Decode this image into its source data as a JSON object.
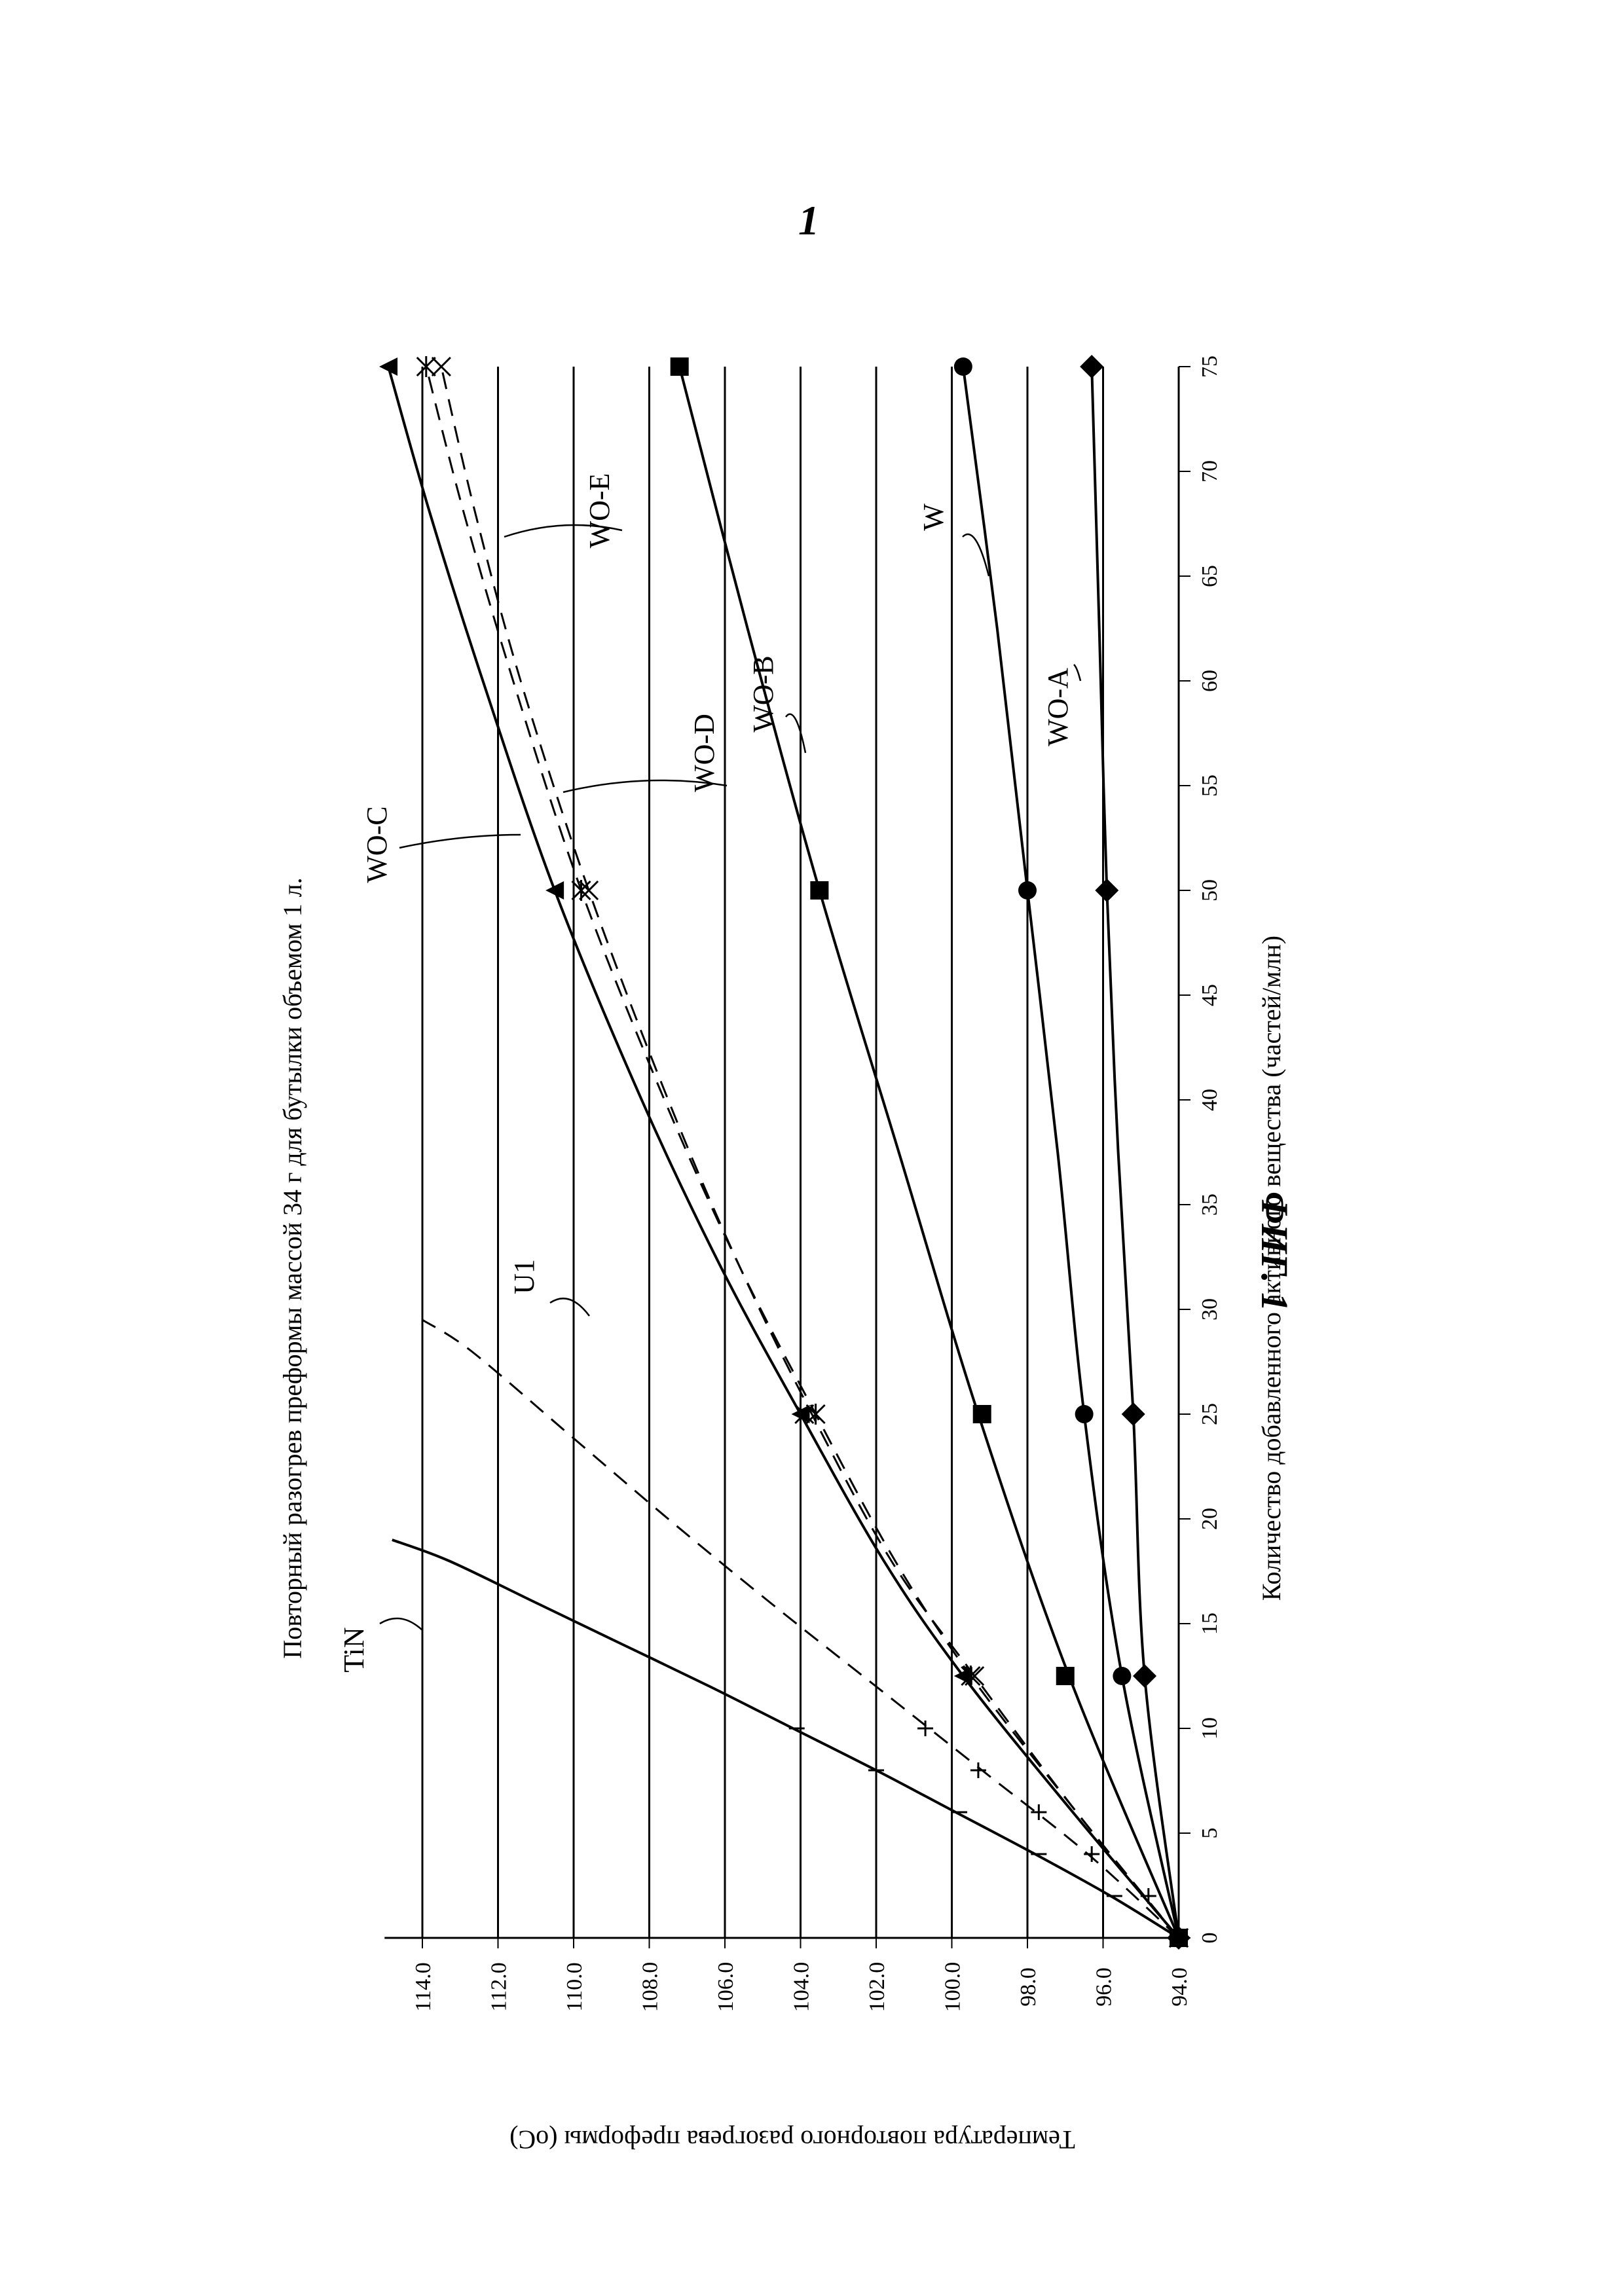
{
  "page": {
    "number": "1",
    "caption": "ФИГ. 1"
  },
  "chart_data": {
    "type": "line",
    "title": "Повторный разогрев преформы массой 34 г для бутылки объемом 1 л.",
    "xlabel": "Количество добавленного активного вещества (частей/млн)",
    "ylabel": "Температура повторного разогрева преформы (oC)",
    "xlim": [
      0,
      75
    ],
    "ylim": [
      94,
      115
    ],
    "x_ticks": [
      "0",
      "5",
      "10",
      "15",
      "20",
      "25",
      "30",
      "35",
      "40",
      "45",
      "50",
      "55",
      "60",
      "65",
      "70",
      "75"
    ],
    "y_ticks": [
      "94.0",
      "96.0",
      "98.0",
      "100.0",
      "102.0",
      "104.0",
      "106.0",
      "108.0",
      "110.0",
      "112.0",
      "114.0"
    ],
    "grid": "horizontal",
    "orientation": "rotated 90° counter-clockwise",
    "series": [
      {
        "name": "TiN",
        "style": "solid",
        "marker": "dash",
        "x": [
          0,
          2,
          4,
          6,
          8,
          10
        ],
        "y": [
          94.0,
          95.7,
          97.7,
          99.8,
          102.0,
          104.1
        ],
        "curve_x": [
          0,
          2,
          4,
          6,
          8,
          10,
          12,
          14,
          16,
          18,
          19
        ],
        "curve_y": [
          94.0,
          95.8,
          97.8,
          99.9,
          102.0,
          104.2,
          106.4,
          108.7,
          111.0,
          113.3,
          114.8
        ]
      },
      {
        "name": "U1",
        "style": "dashed",
        "marker": "plus",
        "x": [
          0,
          2,
          4,
          6,
          8,
          10
        ],
        "y": [
          94.0,
          94.8,
          96.3,
          97.7,
          99.3,
          100.7
        ],
        "curve_x": [
          0,
          4,
          8,
          12,
          16,
          20,
          24,
          28,
          29.5
        ],
        "curve_y": [
          94.0,
          96.4,
          99.2,
          102.0,
          104.8,
          107.5,
          110.1,
          112.7,
          114.0
        ]
      },
      {
        "name": "WO-C",
        "style": "solid",
        "marker": "triangle",
        "x": [
          0,
          12.5,
          25,
          50,
          75
        ],
        "y": [
          94.0,
          99.7,
          104.0,
          110.5,
          114.9
        ],
        "curve_x": [
          0,
          6,
          12.5,
          18,
          25,
          32,
          40,
          50,
          60,
          68,
          75
        ],
        "curve_y": [
          94.0,
          96.8,
          99.7,
          101.8,
          104.0,
          106.1,
          108.2,
          110.5,
          112.4,
          113.8,
          114.9
        ]
      },
      {
        "name": "WO-D",
        "style": "dashed",
        "marker": "asterisk",
        "x": [
          0,
          12.5,
          25,
          50,
          75
        ],
        "y": [
          94.0,
          99.5,
          103.6,
          109.8,
          113.9
        ],
        "curve_x": [
          0,
          6,
          12.5,
          18,
          25,
          32,
          40,
          50,
          60,
          68,
          75
        ],
        "curve_y": [
          94.0,
          96.7,
          99.5,
          101.5,
          103.6,
          105.6,
          107.6,
          109.8,
          111.6,
          112.9,
          113.9
        ]
      },
      {
        "name": "WO-E",
        "style": "dashed",
        "marker": "x",
        "x": [
          0,
          12.5,
          25,
          50,
          75
        ],
        "y": [
          94.0,
          99.4,
          103.9,
          109.6,
          113.5
        ],
        "curve_x": [
          0,
          6,
          12.5,
          18,
          25,
          32,
          40,
          50,
          60,
          68,
          75
        ],
        "curve_y": [
          94.0,
          96.7,
          99.4,
          101.6,
          103.7,
          105.6,
          107.5,
          109.6,
          111.4,
          112.6,
          113.5
        ]
      },
      {
        "name": "WO-B",
        "style": "solid",
        "marker": "square",
        "x": [
          0,
          12.5,
          25,
          50,
          75
        ],
        "y": [
          94.0,
          97.0,
          99.2,
          103.5,
          107.2
        ],
        "curve_x": [
          0,
          12.5,
          25,
          37.5,
          50,
          62.5,
          75
        ],
        "curve_y": [
          94.0,
          96.9,
          99.3,
          101.4,
          103.5,
          105.4,
          107.2
        ]
      },
      {
        "name": "W",
        "style": "solid",
        "marker": "circle",
        "x": [
          0,
          12.5,
          25,
          50,
          75
        ],
        "y": [
          94.0,
          95.5,
          96.5,
          98.0,
          99.7
        ],
        "curve_x": [
          0,
          12.5,
          25,
          37.5,
          50,
          62.5,
          75
        ],
        "curve_y": [
          94.0,
          95.5,
          96.5,
          97.2,
          98.0,
          98.8,
          99.7
        ]
      },
      {
        "name": "WO-A",
        "style": "solid",
        "marker": "diamond",
        "x": [
          0,
          12.5,
          25,
          50,
          75
        ],
        "y": [
          94.0,
          94.9,
          95.2,
          95.9,
          96.3
        ],
        "curve_x": [
          0,
          12.5,
          25,
          37.5,
          50,
          62.5,
          75
        ],
        "curve_y": [
          94.0,
          94.9,
          95.2,
          95.6,
          95.9,
          96.1,
          96.3
        ]
      }
    ],
    "annotations": [
      {
        "text": "TiN",
        "series": "TiN"
      },
      {
        "text": "U1",
        "series": "U1"
      },
      {
        "text": "WO-C",
        "series": "WO-C"
      },
      {
        "text": "WO-D",
        "series": "WO-D"
      },
      {
        "text": "WO-E",
        "series": "WO-E"
      },
      {
        "text": "WO-B",
        "series": "WO-B"
      },
      {
        "text": "W",
        "series": "W"
      },
      {
        "text": "WO-A",
        "series": "WO-A"
      }
    ]
  }
}
